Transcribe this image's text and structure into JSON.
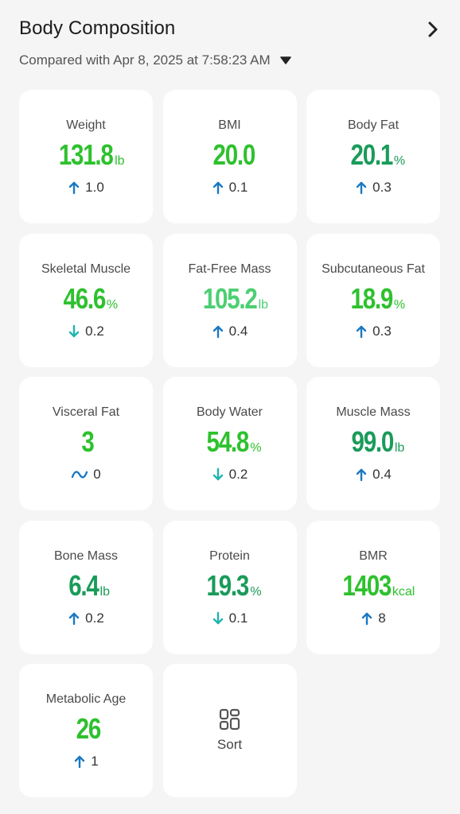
{
  "header": {
    "title": "Body Composition",
    "compare_text": "Compared with Apr 8, 2025 at 7:58:23 AM"
  },
  "colors": {
    "green_dark": "#1a9b5a",
    "green_bright": "#2ec12e",
    "green_light": "#3fd06a",
    "arrow_up": "#1a78c2",
    "arrow_down": "#1fb5ad"
  },
  "metrics": [
    {
      "label": "Weight",
      "value": "131.8",
      "unit": "lb",
      "delta": "1.0",
      "dir": "up",
      "color": "#2ec12e"
    },
    {
      "label": "BMI",
      "value": "20.0",
      "unit": "",
      "delta": "0.1",
      "dir": "up",
      "color": "#2ec12e"
    },
    {
      "label": "Body Fat",
      "value": "20.1",
      "unit": "%",
      "delta": "0.3",
      "dir": "up",
      "color": "#1a9b5a"
    },
    {
      "label": "Skeletal Muscle",
      "value": "46.6",
      "unit": "%",
      "delta": "0.2",
      "dir": "down",
      "color": "#2ec12e"
    },
    {
      "label": "Fat-Free Mass",
      "value": "105.2",
      "unit": "lb",
      "delta": "0.4",
      "dir": "up",
      "color": "#4ccf72"
    },
    {
      "label": "Subcutaneous Fat",
      "value": "18.9",
      "unit": "%",
      "delta": "0.3",
      "dir": "up",
      "color": "#2ec12e"
    },
    {
      "label": "Visceral Fat",
      "value": "3",
      "unit": "",
      "delta": "0",
      "dir": "flat",
      "color": "#2ec12e"
    },
    {
      "label": "Body Water",
      "value": "54.8",
      "unit": "%",
      "delta": "0.2",
      "dir": "down",
      "color": "#2ec12e"
    },
    {
      "label": "Muscle Mass",
      "value": "99.0",
      "unit": "lb",
      "delta": "0.4",
      "dir": "up",
      "color": "#1a9b5a"
    },
    {
      "label": "Bone Mass",
      "value": "6.4",
      "unit": "lb",
      "delta": "0.2",
      "dir": "up",
      "color": "#1a9b5a"
    },
    {
      "label": "Protein",
      "value": "19.3",
      "unit": "%",
      "delta": "0.1",
      "dir": "down",
      "color": "#1a9b5a"
    },
    {
      "label": "BMR",
      "value": "1403",
      "unit": "kcal",
      "delta": "8",
      "dir": "up",
      "color": "#2ec12e"
    },
    {
      "label": "Metabolic Age",
      "value": "26",
      "unit": "",
      "delta": "1",
      "dir": "up",
      "color": "#2ec12e"
    }
  ],
  "sort": {
    "label": "Sort",
    "icon": "sort-grid-icon"
  }
}
